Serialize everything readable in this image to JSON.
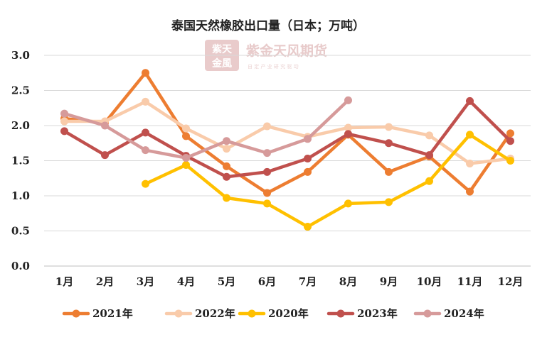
{
  "chart_data": {
    "type": "line",
    "title": "泰国天然橡胶出口量（日本；万吨）",
    "categories": [
      "1月",
      "2月",
      "3月",
      "4月",
      "5月",
      "6月",
      "7月",
      "8月",
      "9月",
      "10月",
      "11月",
      "12月"
    ],
    "ylim": [
      0,
      3.0
    ],
    "yticks": [
      "0.0",
      "0.5",
      "1.0",
      "1.5",
      "2.0",
      "2.5",
      "3.0"
    ],
    "grid": true,
    "legend_position": "bottom",
    "series": [
      {
        "name": "2021年",
        "color": "#ED7D31",
        "values": [
          2.1,
          2.04,
          2.75,
          1.85,
          1.42,
          1.04,
          1.34,
          1.87,
          1.34,
          1.56,
          1.06,
          1.89
        ]
      },
      {
        "name": "2022年",
        "color": "#F9CBAA",
        "values": [
          2.06,
          2.06,
          2.34,
          1.96,
          1.67,
          1.99,
          1.84,
          1.97,
          1.98,
          1.86,
          1.46,
          1.53
        ]
      },
      {
        "name": "2020年",
        "color": "#FFC000",
        "values": [
          null,
          null,
          1.17,
          1.44,
          0.97,
          0.89,
          0.56,
          0.89,
          0.91,
          1.21,
          1.87,
          1.5
        ]
      },
      {
        "name": "2023年",
        "color": "#C0504D",
        "values": [
          1.92,
          1.58,
          1.9,
          1.57,
          1.27,
          1.34,
          1.53,
          1.88,
          1.75,
          1.58,
          2.35,
          1.78
        ]
      },
      {
        "name": "2024年",
        "color": "#D69A9A",
        "values": [
          2.17,
          2.0,
          1.65,
          1.54,
          1.78,
          1.61,
          1.81,
          2.36,
          null,
          null,
          null,
          null
        ]
      }
    ]
  },
  "watermark": {
    "brand": "紫金天风期货",
    "slogan": "自 定 产 业   研 究 驱 动",
    "seal": [
      "紫天",
      "金風"
    ]
  }
}
